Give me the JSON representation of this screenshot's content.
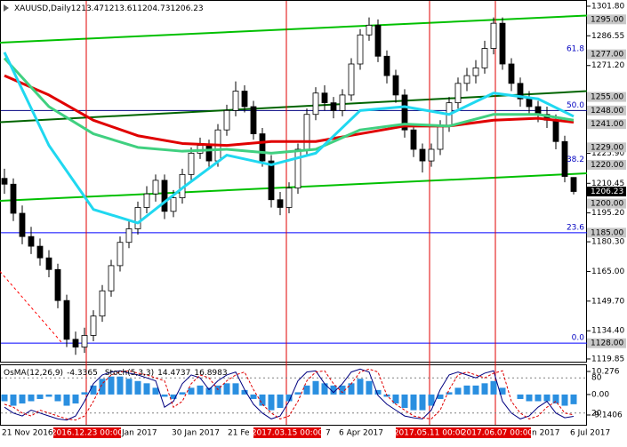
{
  "chart_data": [
    {
      "type": "candlestick",
      "title": "XAUUSD,Daily",
      "open": [
        1213,
        1210,
        1195,
        1183,
        1178,
        1172,
        1166,
        1150,
        1130,
        1126,
        1132,
        1142,
        1155,
        1168,
        1180,
        1187,
        1198,
        1205,
        1212,
        1196,
        1203,
        1215,
        1226,
        1230,
        1222,
        1238,
        1248,
        1258,
        1250,
        1236,
        1222,
        1202,
        1198,
        1208,
        1228,
        1246,
        1257,
        1252,
        1248,
        1256,
        1272,
        1287,
        1292,
        1276,
        1266,
        1256,
        1238,
        1228,
        1222,
        1228,
        1240,
        1252,
        1262,
        1266,
        1270,
        1280,
        1293,
        1272,
        1262,
        1254,
        1250,
        1246,
        1243,
        1232,
        1213.47
      ],
      "high": [
        1218,
        1213,
        1199,
        1188,
        1182,
        1176,
        1169,
        1153,
        1134,
        1136,
        1145,
        1158,
        1171,
        1183,
        1191,
        1201,
        1209,
        1215,
        1215,
        1207,
        1218,
        1229,
        1234,
        1233,
        1241,
        1251,
        1263,
        1261,
        1253,
        1239,
        1225,
        1206,
        1211,
        1231,
        1249,
        1260,
        1261,
        1255,
        1259,
        1275,
        1290,
        1296,
        1295,
        1279,
        1269,
        1259,
        1241,
        1231,
        1231,
        1243,
        1255,
        1265,
        1270,
        1274,
        1284,
        1296,
        1296,
        1275,
        1265,
        1258,
        1253,
        1250,
        1246,
        1235,
        1213.61
      ],
      "low": [
        1205,
        1191,
        1179,
        1174,
        1168,
        1162,
        1146,
        1126,
        1122,
        1123,
        1129,
        1139,
        1152,
        1165,
        1177,
        1184,
        1195,
        1201,
        1192,
        1193,
        1200,
        1212,
        1223,
        1219,
        1219,
        1235,
        1245,
        1247,
        1233,
        1219,
        1198,
        1194,
        1195,
        1205,
        1225,
        1243,
        1248,
        1244,
        1245,
        1253,
        1269,
        1284,
        1273,
        1262,
        1252,
        1234,
        1224,
        1216,
        1219,
        1225,
        1237,
        1249,
        1258,
        1262,
        1267,
        1277,
        1269,
        1258,
        1250,
        1246,
        1242,
        1239,
        1228,
        1211,
        1204.73
      ],
      "close": [
        1210,
        1195,
        1183,
        1178,
        1172,
        1166,
        1150,
        1130,
        1126,
        1132,
        1142,
        1155,
        1168,
        1180,
        1187,
        1198,
        1205,
        1212,
        1196,
        1203,
        1215,
        1226,
        1230,
        1222,
        1238,
        1248,
        1258,
        1250,
        1236,
        1222,
        1202,
        1198,
        1208,
        1228,
        1246,
        1257,
        1252,
        1248,
        1256,
        1272,
        1287,
        1292,
        1276,
        1266,
        1256,
        1238,
        1228,
        1222,
        1228,
        1240,
        1252,
        1262,
        1266,
        1270,
        1280,
        1293,
        1272,
        1262,
        1254,
        1250,
        1246,
        1243,
        1232,
        1214,
        1206.23
      ],
      "ylim": [
        1118,
        1305
      ],
      "yticks": [
        {
          "value": 1301.8,
          "label": "1301.80"
        },
        1286.55,
        {
          "value": 1271.2,
          "label": "1271.20"
        },
        {
          "value": 1225.9,
          "label": "1225.90"
        },
        1210.45,
        {
          "value": 1195.2,
          "label": "1195.20"
        },
        {
          "value": 1180.3,
          "label": "1180.30"
        },
        {
          "value": 1165,
          "label": "1165.00"
        },
        {
          "value": 1149.7,
          "label": "1149.70"
        },
        {
          "value": 1134.4,
          "label": "1134.40"
        },
        1119.85
      ],
      "levels": [
        {
          "value": 1295,
          "label": "1295.00"
        },
        {
          "value": 1277,
          "label": "1277.00"
        },
        {
          "value": 1255,
          "label": "1255.00"
        },
        {
          "value": 1248,
          "label": "1248.00",
          "color": "#000080"
        },
        {
          "value": 1241,
          "label": "1241.00"
        },
        {
          "value": 1229,
          "label": "1229.00"
        },
        {
          "value": 1220,
          "label": "1220.00"
        },
        {
          "value": 1200,
          "label": "1200.00"
        },
        {
          "value": 1185,
          "label": "1185.00",
          "color": "#0000ff"
        },
        {
          "value": 1128,
          "label": "1128.00",
          "color": "#0000ff"
        }
      ],
      "fib": [
        {
          "label": "61.8",
          "price": 1277
        },
        {
          "label": "50.0",
          "price": 1248
        },
        {
          "label": "38.2",
          "price": 1220
        },
        {
          "label": "23.6",
          "price": 1185
        },
        {
          "label": "0.0",
          "price": 1128
        }
      ],
      "trendlines": [
        {
          "color": "#00c000",
          "x": [
            -0.5,
            65.5
          ],
          "values": [
            1283,
            1297
          ]
        },
        {
          "color": "#00c000",
          "x": [
            -0.5,
            65.5
          ],
          "values": [
            1201.4,
            1215.6
          ]
        },
        {
          "color": "#006400",
          "x": [
            -0.5,
            65.5
          ],
          "values": [
            1242,
            1258
          ]
        },
        {
          "color": "#ff0000",
          "x": [
            -0.5,
            6.5
          ],
          "values": [
            1165,
            1128
          ],
          "dash": true
        }
      ],
      "moving_averages": [
        {
          "color": "#e00000",
          "x": [
            0,
            5,
            10,
            15,
            20,
            25,
            30,
            35,
            40,
            45,
            50,
            55,
            60,
            64
          ],
          "values": [
            1266,
            1256,
            1243,
            1235,
            1231,
            1230,
            1232,
            1232,
            1236,
            1240,
            1240,
            1243,
            1244,
            1242
          ]
        },
        {
          "color": "#40d080",
          "x": [
            0,
            5,
            10,
            15,
            20,
            25,
            30,
            35,
            40,
            45,
            50,
            55,
            60,
            64
          ],
          "values": [
            1275,
            1250,
            1236,
            1229,
            1227,
            1228,
            1226,
            1228,
            1238,
            1241,
            1240,
            1246,
            1246,
            1243
          ]
        },
        {
          "color": "#20d8f0",
          "x": [
            0,
            5,
            10,
            15,
            20,
            25,
            30,
            35,
            40,
            45,
            50,
            55,
            60,
            64
          ],
          "values": [
            1278,
            1230,
            1197,
            1190,
            1208,
            1225,
            1220,
            1226,
            1248,
            1250,
            1246,
            1257,
            1254,
            1245
          ]
        }
      ],
      "markers": [
        "2016.12.23 00:00",
        "2017.03.15 00:00",
        "2017.05.11 00:00",
        "2017.06.07 00:00"
      ],
      "xlabels": [
        "21 Nov 2016",
        "Jan 2017",
        "30 Jan 2017",
        "21 Fe",
        "7",
        "6 Apr 2017",
        "n 2017",
        "6 Jul 2017"
      ]
    },
    {
      "type": "oscillator",
      "title": "OsMA(12,26,9)",
      "stoch_title": "Stoch(5,3,3)",
      "osma": [
        -3,
        -5,
        -4,
        -3,
        -2,
        -1,
        -3,
        -5,
        -4,
        1,
        4,
        7,
        8,
        8,
        7,
        6,
        5,
        3,
        -1,
        -2,
        1,
        3,
        4,
        3,
        4,
        5,
        5,
        2,
        -2,
        -5,
        -7,
        -6,
        -3,
        1,
        4,
        6,
        5,
        4,
        4,
        5,
        7,
        6,
        2,
        -1,
        -4,
        -6,
        -7,
        -7,
        -5,
        -2,
        1,
        3,
        4,
        4,
        5,
        6,
        3,
        0,
        -2,
        -3,
        -3,
        -3,
        -4,
        -5,
        -4.3365
      ],
      "osma_color": "#2a8fe0",
      "stoch": [
        30,
        20,
        15,
        25,
        20,
        15,
        10,
        8,
        15,
        40,
        70,
        85,
        90,
        92,
        88,
        85,
        80,
        75,
        30,
        40,
        70,
        85,
        80,
        60,
        75,
        85,
        90,
        60,
        35,
        20,
        10,
        15,
        40,
        75,
        90,
        92,
        70,
        55,
        70,
        90,
        95,
        90,
        50,
        35,
        25,
        15,
        12,
        10,
        25,
        60,
        85,
        90,
        85,
        80,
        88,
        92,
        40,
        20,
        10,
        15,
        30,
        40,
        20,
        12,
        14.4737
      ],
      "signal": [
        35,
        30,
        20,
        15,
        25,
        20,
        15,
        10,
        8,
        15,
        40,
        70,
        85,
        90,
        92,
        88,
        85,
        80,
        75,
        30,
        40,
        70,
        85,
        80,
        60,
        75,
        85,
        90,
        60,
        35,
        20,
        10,
        15,
        40,
        75,
        90,
        92,
        70,
        55,
        70,
        90,
        95,
        90,
        50,
        35,
        25,
        15,
        12,
        10,
        25,
        60,
        85,
        90,
        85,
        80,
        88,
        92,
        40,
        20,
        10,
        15,
        30,
        40,
        20,
        16.8983
      ],
      "ylim": [
        0,
        100
      ],
      "yticks": [
        80,
        20
      ],
      "y2lim": [
        -13.5,
        12.65
      ],
      "y2ticks": [
        10.276,
        {
          "value": 0,
          "label": "0.00"
        },
        -9.1406
      ]
    }
  ]
}
